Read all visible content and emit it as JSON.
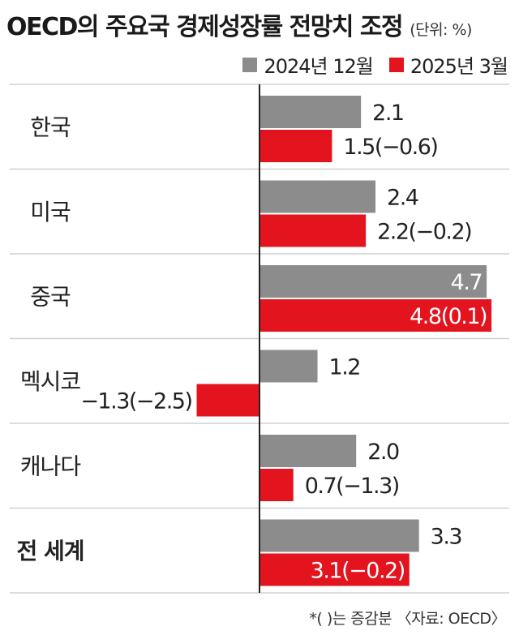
{
  "title": "OECD의 주요국 경제성장률 전망치 조정",
  "unit": "(단위: %)",
  "footnote": "*( )는 증감분 〈자료: OECD〉",
  "colors": {
    "gray": "#8c8c8c",
    "red": "#e3141e",
    "divider": "#d0d0d0",
    "axis": "#222222"
  },
  "chart_data": {
    "type": "bar",
    "orientation": "horizontal",
    "categories": [
      "한국",
      "미국",
      "중국",
      "멕시코",
      "캐나다",
      "전 세계"
    ],
    "series": [
      {
        "name": "2024년 12월",
        "color": "#8c8c8c",
        "values": [
          2.1,
          2.4,
          4.7,
          1.2,
          2.0,
          3.3
        ]
      },
      {
        "name": "2025년 3월",
        "color": "#e3141e",
        "values": [
          1.5,
          2.2,
          4.8,
          -1.3,
          0.7,
          3.1
        ]
      }
    ],
    "labels": [
      [
        "2.1",
        "2.4",
        "4.7",
        "1.2",
        "2.0",
        "3.3"
      ],
      [
        "1.5(−0.6)",
        "2.2(−0.2)",
        "4.8(0.1)",
        "−1.3(−2.5)",
        "0.7(−1.3)",
        "3.1(−0.2)"
      ]
    ],
    "bold_category": "전 세계"
  }
}
